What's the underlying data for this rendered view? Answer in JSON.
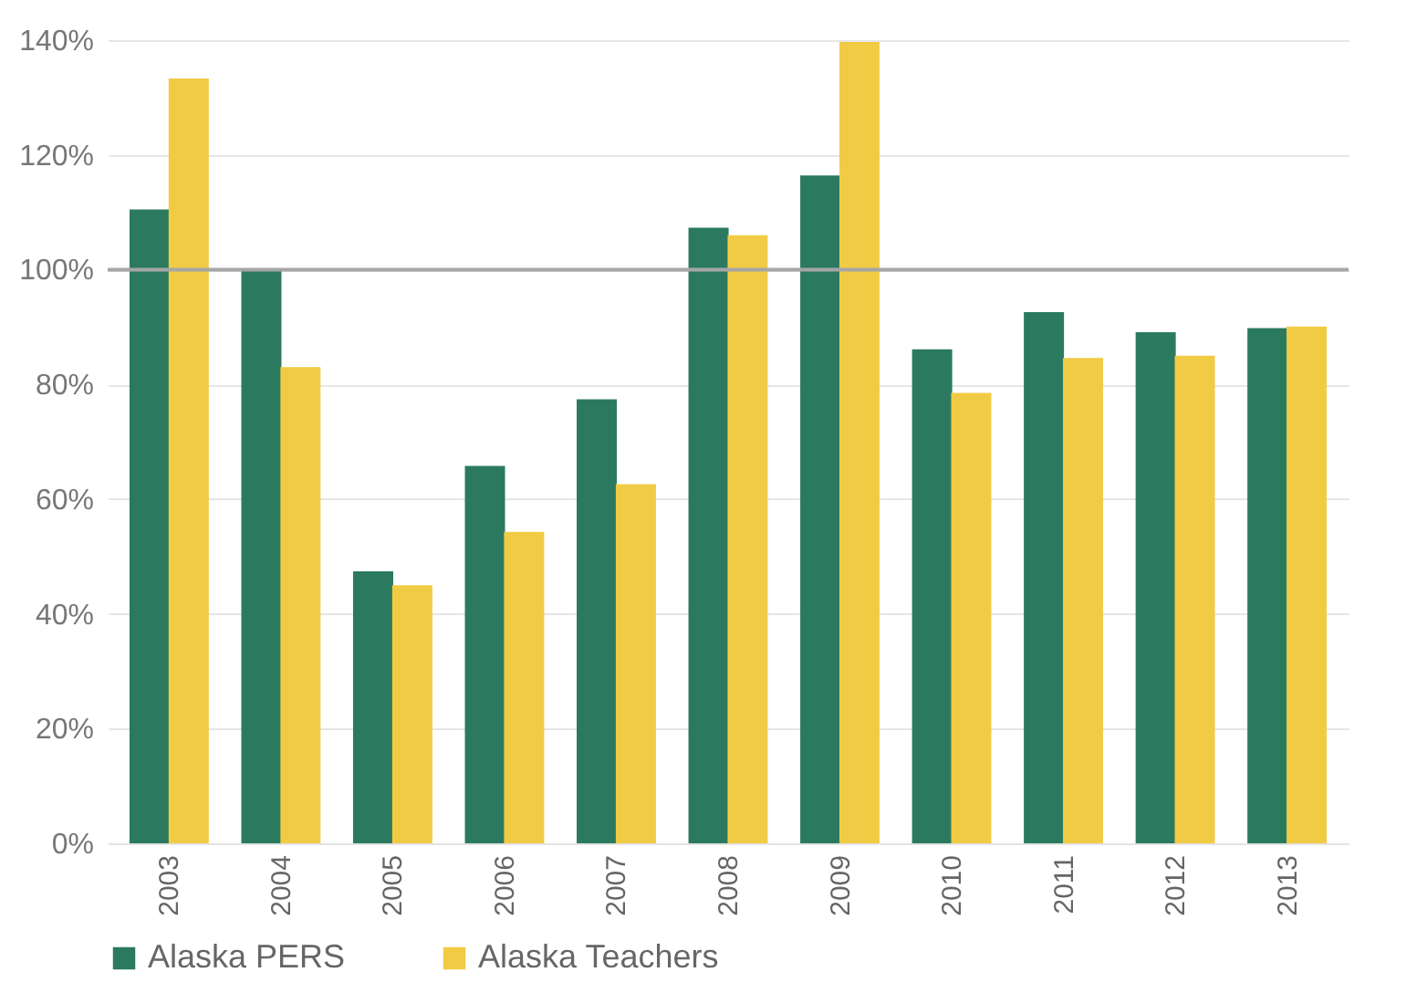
{
  "chart_data": {
    "type": "bar",
    "categories": [
      "2003",
      "2004",
      "2005",
      "2006",
      "2007",
      "2008",
      "2009",
      "2010",
      "2011",
      "2012",
      "2013"
    ],
    "series": [
      {
        "name": "Alaska PERS",
        "color": "#2b7a5f",
        "values": [
          110.5,
          100,
          47.4,
          65.8,
          77.4,
          107.3,
          116.4,
          86.1,
          92.6,
          89.1,
          89.8
        ]
      },
      {
        "name": "Alaska Teachers",
        "color": "#f2cb45",
        "values": [
          133.3,
          83,
          45,
          54.3,
          62.6,
          106,
          139.7,
          78.5,
          84.6,
          85,
          90.1
        ]
      }
    ],
    "ylim": [
      0,
      140
    ],
    "yticks": [
      {
        "value": 0,
        "label": "0%"
      },
      {
        "value": 20,
        "label": "20%"
      },
      {
        "value": 40,
        "label": "40%"
      },
      {
        "value": 60,
        "label": "60%"
      },
      {
        "value": 80,
        "label": "80%"
      },
      {
        "value": 100,
        "label": "100%"
      },
      {
        "value": 120,
        "label": "120%"
      },
      {
        "value": 140,
        "label": "140%"
      }
    ],
    "ref_lines": [
      {
        "axis": "y",
        "value": 100,
        "color": "#a6a6a6"
      }
    ],
    "grid": "y",
    "legend": "bottom"
  }
}
